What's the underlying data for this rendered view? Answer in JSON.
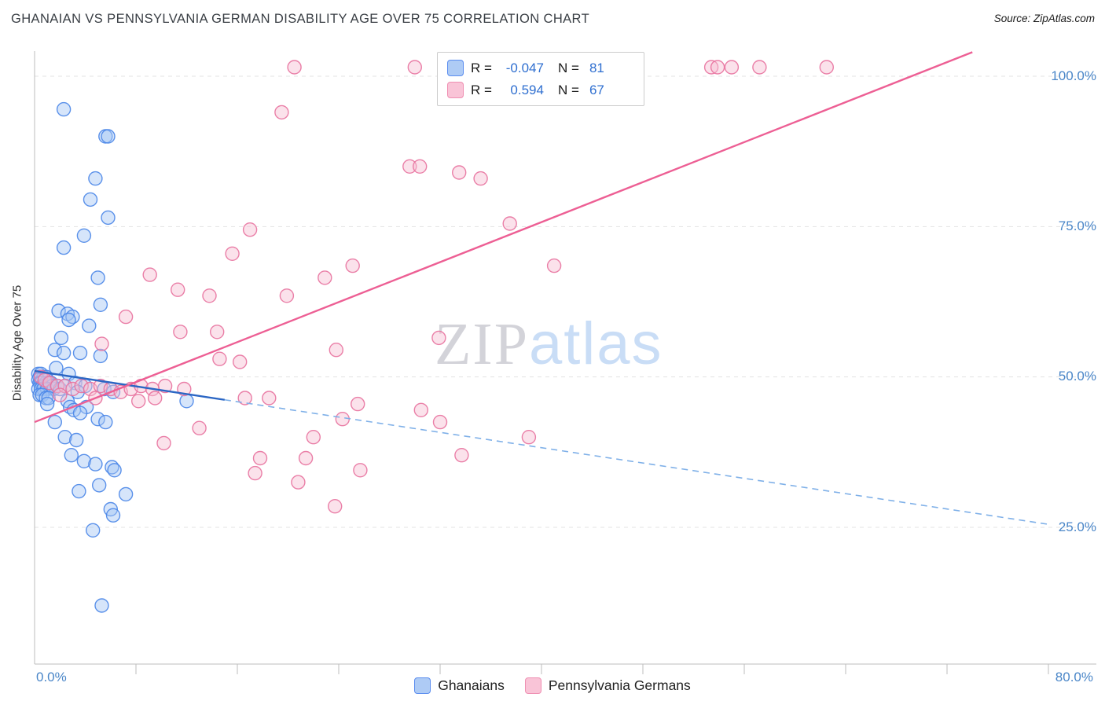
{
  "header": {
    "title": "GHANAIAN VS PENNSYLVANIA GERMAN DISABILITY AGE OVER 75 CORRELATION CHART",
    "source": "Source: ZipAtlas.com"
  },
  "axes": {
    "y_label": "Disability Age Over 75",
    "y_ticks": [
      "100.0%",
      "75.0%",
      "50.0%",
      "25.0%"
    ],
    "x_min_label": "0.0%",
    "x_max_label": "80.0%"
  },
  "legend_box": {
    "r_label": "R =",
    "n_label": "N ="
  },
  "watermark": {
    "zip": "ZIP",
    "atlas": "atlas"
  },
  "colors": {
    "blue_stroke": "#4a86e8",
    "blue_fill": "#a4c6f4",
    "pink_stroke": "#e8729f",
    "pink_fill": "#f7bed2",
    "axis_label_blue": "#4a86c8",
    "blue_trend": "#2b66c4",
    "pink_trend": "#ed5f94"
  },
  "chart_data": {
    "type": "scatter",
    "title": "GHANAIAN VS PENNSYLVANIA GERMAN DISABILITY AGE OVER 75 CORRELATION CHART",
    "xlabel": "",
    "ylabel": "Disability Age Over 75",
    "x_range_pct": [
      0,
      80
    ],
    "y_ticks_pct": [
      100,
      75,
      50,
      25
    ],
    "grid": "horizontal-dashed",
    "legend_position": "top-center",
    "series": [
      {
        "name": "Ghanaians",
        "r": "-0.047",
        "n": "81",
        "color": "#4a86e8",
        "fill": "#a4c6f4",
        "points": [
          [
            2.3,
            94.5
          ],
          [
            5.6,
            90
          ],
          [
            5.8,
            90
          ],
          [
            4.8,
            83
          ],
          [
            4.4,
            79.5
          ],
          [
            5.8,
            76.5
          ],
          [
            3.9,
            73.5
          ],
          [
            2.3,
            71.5
          ],
          [
            5,
            66.5
          ],
          [
            5.2,
            62
          ],
          [
            1.9,
            61
          ],
          [
            2.6,
            60.5
          ],
          [
            3,
            60
          ],
          [
            2.7,
            59.5
          ],
          [
            4.3,
            58.5
          ],
          [
            2.1,
            56.5
          ],
          [
            1.6,
            54.5
          ],
          [
            2.3,
            54
          ],
          [
            3.6,
            54
          ],
          [
            5.2,
            53.5
          ],
          [
            1.7,
            51.5
          ],
          [
            2.7,
            50.5
          ],
          [
            0.3,
            50.5
          ],
          [
            0.4,
            50
          ],
          [
            0.5,
            50.5
          ],
          [
            0.6,
            49.5
          ],
          [
            0.7,
            50
          ],
          [
            0.8,
            49.5
          ],
          [
            0.9,
            50
          ],
          [
            1,
            49.5
          ],
          [
            0.3,
            49.5
          ],
          [
            0.4,
            49
          ],
          [
            0.5,
            49
          ],
          [
            0.6,
            48.5
          ],
          [
            0.7,
            48.5
          ],
          [
            0.8,
            48.5
          ],
          [
            0.9,
            49
          ],
          [
            1.1,
            49
          ],
          [
            1.3,
            49
          ],
          [
            1.4,
            48.5
          ],
          [
            0.3,
            48
          ],
          [
            0.5,
            48
          ],
          [
            0.7,
            48
          ],
          [
            1,
            48
          ],
          [
            1.5,
            48
          ],
          [
            1.8,
            48.5
          ],
          [
            2,
            48
          ],
          [
            2.4,
            48.5
          ],
          [
            3.2,
            49
          ],
          [
            4,
            48.5
          ],
          [
            5.5,
            48
          ],
          [
            6.2,
            47.5
          ],
          [
            3.4,
            47.5
          ],
          [
            0.4,
            47
          ],
          [
            0.6,
            47
          ],
          [
            0.9,
            46.5
          ],
          [
            1.1,
            46.5
          ],
          [
            2.6,
            46
          ],
          [
            12,
            46
          ],
          [
            1,
            45.5
          ],
          [
            2.8,
            45
          ],
          [
            4.1,
            45
          ],
          [
            3.1,
            44.5
          ],
          [
            3.6,
            44
          ],
          [
            5,
            43
          ],
          [
            5.6,
            42.5
          ],
          [
            1.6,
            42.5
          ],
          [
            2.4,
            40
          ],
          [
            3.3,
            39.5
          ],
          [
            2.9,
            37
          ],
          [
            3.9,
            36
          ],
          [
            4.8,
            35.5
          ],
          [
            6.1,
            35
          ],
          [
            6.3,
            34.5
          ],
          [
            5.1,
            32
          ],
          [
            3.5,
            31
          ],
          [
            7.2,
            30.5
          ],
          [
            6,
            28
          ],
          [
            6.2,
            27
          ],
          [
            4.6,
            24.5
          ],
          [
            5.3,
            12
          ]
        ]
      },
      {
        "name": "Pennsylvania Germans",
        "r": "0.594",
        "n": "67",
        "color": "#e8729f",
        "fill": "#f7bed2",
        "points": [
          [
            20.5,
            101.5
          ],
          [
            30,
            101.5
          ],
          [
            53.4,
            101.5
          ],
          [
            53.9,
            101.5
          ],
          [
            55,
            101.5
          ],
          [
            57.2,
            101.5
          ],
          [
            62.5,
            101.5
          ],
          [
            19.5,
            94
          ],
          [
            29.6,
            85
          ],
          [
            30.4,
            85
          ],
          [
            33.5,
            84
          ],
          [
            35.2,
            83
          ],
          [
            37.5,
            75.5
          ],
          [
            17,
            74.5
          ],
          [
            41,
            68.5
          ],
          [
            15.6,
            70.5
          ],
          [
            25.1,
            68.5
          ],
          [
            9.1,
            67
          ],
          [
            22.9,
            66.5
          ],
          [
            11.3,
            64.5
          ],
          [
            13.8,
            63.5
          ],
          [
            19.9,
            63.5
          ],
          [
            7.2,
            60
          ],
          [
            11.5,
            57.5
          ],
          [
            14.4,
            57.5
          ],
          [
            31.9,
            56.5
          ],
          [
            5.3,
            55.5
          ],
          [
            23.8,
            54.5
          ],
          [
            14.6,
            53
          ],
          [
            16.2,
            52.5
          ],
          [
            0.5,
            50
          ],
          [
            0.8,
            49.5
          ],
          [
            1.2,
            49
          ],
          [
            1.8,
            48.5
          ],
          [
            2.4,
            48.5
          ],
          [
            3,
            48
          ],
          [
            3.7,
            48.5
          ],
          [
            4.4,
            48
          ],
          [
            5.2,
            48.5
          ],
          [
            6,
            48
          ],
          [
            6.8,
            47.5
          ],
          [
            7.6,
            48
          ],
          [
            8.4,
            48.5
          ],
          [
            9.3,
            48
          ],
          [
            10.3,
            48.5
          ],
          [
            11.8,
            48
          ],
          [
            2,
            47
          ],
          [
            4.8,
            46.5
          ],
          [
            9.5,
            46.5
          ],
          [
            8.2,
            46
          ],
          [
            16.6,
            46.5
          ],
          [
            18.5,
            46.5
          ],
          [
            25.5,
            45.5
          ],
          [
            30.5,
            44.5
          ],
          [
            32,
            42.5
          ],
          [
            24.3,
            43
          ],
          [
            13,
            41.5
          ],
          [
            10.2,
            39
          ],
          [
            22,
            40
          ],
          [
            39,
            40
          ],
          [
            17.8,
            36.5
          ],
          [
            21.4,
            36.5
          ],
          [
            33.7,
            37
          ],
          [
            25.7,
            34.5
          ],
          [
            17.4,
            34
          ],
          [
            20.8,
            32.5
          ],
          [
            23.7,
            28.5
          ]
        ]
      }
    ],
    "trend_lines": [
      {
        "series": "Ghanaians",
        "color": "#2b66c4",
        "dash_color": "#7fb0e8",
        "solid": [
          [
            0,
            51
          ],
          [
            15,
            46.2
          ]
        ],
        "dashed": [
          [
            15,
            46.2
          ],
          [
            80,
            25.5
          ]
        ]
      },
      {
        "series": "Pennsylvania Germans",
        "color": "#ed5f94",
        "solid": [
          [
            0,
            42.5
          ],
          [
            74,
            104
          ]
        ]
      }
    ]
  }
}
